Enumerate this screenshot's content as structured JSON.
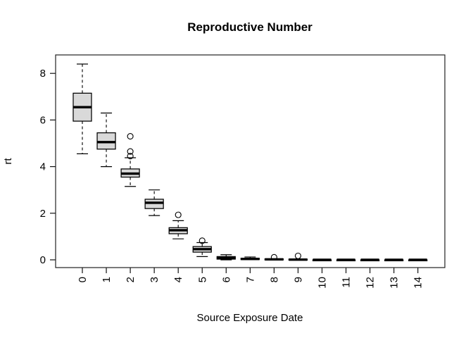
{
  "chart_data": {
    "type": "boxplot",
    "title": "Reproductive Number",
    "xlabel": "Source Exposure Date",
    "ylabel": "rt",
    "categories": [
      "0",
      "1",
      "2",
      "3",
      "4",
      "5",
      "6",
      "7",
      "8",
      "9",
      "10",
      "11",
      "12",
      "13",
      "14"
    ],
    "y_ticks": [
      0,
      2,
      4,
      6,
      8
    ],
    "ylim": [
      -0.35,
      8.8
    ],
    "grid": "off",
    "legend": "none",
    "box_fill_color": "#d9d9d9",
    "stroke_color": "#000000",
    "background_color": "#ffffff",
    "boxes": [
      {
        "label": "0",
        "whisker_low": 4.55,
        "q1": 5.95,
        "median": 6.55,
        "q3": 7.15,
        "whisker_high": 8.4,
        "outliers": []
      },
      {
        "label": "1",
        "whisker_low": 4.0,
        "q1": 4.75,
        "median": 5.05,
        "q3": 5.45,
        "whisker_high": 6.3,
        "outliers": []
      },
      {
        "label": "2",
        "whisker_low": 3.15,
        "q1": 3.55,
        "median": 3.7,
        "q3": 3.9,
        "whisker_high": 4.38,
        "outliers": [
          5.3,
          4.65,
          4.45
        ]
      },
      {
        "label": "3",
        "whisker_low": 1.9,
        "q1": 2.2,
        "median": 2.45,
        "q3": 2.6,
        "whisker_high": 3.0,
        "outliers": []
      },
      {
        "label": "4",
        "whisker_low": 0.9,
        "q1": 1.12,
        "median": 1.27,
        "q3": 1.38,
        "whisker_high": 1.68,
        "outliers": [
          1.93
        ]
      },
      {
        "label": "5",
        "whisker_low": 0.14,
        "q1": 0.33,
        "median": 0.46,
        "q3": 0.57,
        "whisker_high": 0.74,
        "outliers": [
          0.82
        ]
      },
      {
        "label": "6",
        "whisker_low": 0.0,
        "q1": 0.03,
        "median": 0.08,
        "q3": 0.14,
        "whisker_high": 0.22,
        "outliers": []
      },
      {
        "label": "7",
        "whisker_low": 0.0,
        "q1": 0.01,
        "median": 0.04,
        "q3": 0.07,
        "whisker_high": 0.12,
        "outliers": []
      },
      {
        "label": "8",
        "whisker_low": 0.0,
        "q1": 0.0,
        "median": 0.02,
        "q3": 0.04,
        "whisker_high": 0.05,
        "outliers": [
          0.11
        ]
      },
      {
        "label": "9",
        "whisker_low": 0.0,
        "q1": 0.0,
        "median": 0.01,
        "q3": 0.03,
        "whisker_high": 0.04,
        "outliers": [
          0.17
        ]
      },
      {
        "label": "10",
        "whisker_low": 0.0,
        "q1": 0.0,
        "median": 0.0,
        "q3": 0.0,
        "whisker_high": 0.0,
        "outliers": []
      },
      {
        "label": "11",
        "whisker_low": 0.0,
        "q1": 0.0,
        "median": 0.0,
        "q3": 0.0,
        "whisker_high": 0.0,
        "outliers": []
      },
      {
        "label": "12",
        "whisker_low": 0.0,
        "q1": 0.0,
        "median": 0.0,
        "q3": 0.0,
        "whisker_high": 0.0,
        "outliers": []
      },
      {
        "label": "13",
        "whisker_low": 0.0,
        "q1": 0.0,
        "median": 0.0,
        "q3": 0.0,
        "whisker_high": 0.0,
        "outliers": []
      },
      {
        "label": "14",
        "whisker_low": 0.0,
        "q1": 0.0,
        "median": 0.0,
        "q3": 0.0,
        "whisker_high": 0.0,
        "outliers": []
      }
    ]
  }
}
